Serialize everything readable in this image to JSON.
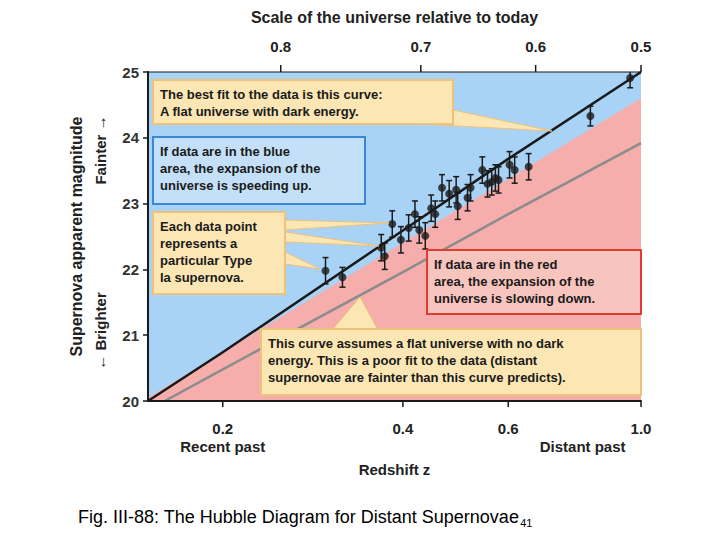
{
  "chart_data": {
    "type": "scatter",
    "title": "Scale of the universe relative to today",
    "xlabel": "Redshift z",
    "ylabel": "Supernova apparent magnitude",
    "ylabel_direction": {
      "up": "Fainter →",
      "down": "← Brighter"
    },
    "x_range_notes": {
      "low": "Recent past",
      "high": "Distant past"
    },
    "log": "x",
    "grid": false,
    "xlim": [
      0.15,
      1.0
    ],
    "xticks": [
      0.2,
      0.4,
      0.6,
      {
        "value": 1.0,
        "label": "1.0"
      }
    ],
    "ylim": [
      20,
      25
    ],
    "yticks": [
      20,
      21,
      22,
      23,
      24,
      25
    ],
    "x2lim": [
      0.87,
      0.5
    ],
    "x2ticks": [
      0.8,
      0.7,
      0.6,
      0.5
    ],
    "series": [
      {
        "type": "area",
        "color": "#a9d3f6",
        "x": [
          0.15,
          1.0
        ],
        "values": [
          25,
          25
        ]
      },
      {
        "type": "area",
        "color": "#f5aeab",
        "x": [
          0.15,
          1.0
        ],
        "values": [
          20.05,
          24.6
        ]
      },
      {
        "type": "line",
        "color": "#8c8c8c",
        "x": [
          0.16,
          0.2,
          0.4,
          0.6,
          1.0
        ],
        "values": [
          20.0,
          20.48,
          21.96,
          22.84,
          23.92
        ]
      },
      {
        "type": "line",
        "color": "#1a1a1a",
        "x": [
          0.15,
          0.2,
          0.4,
          0.6,
          1.0
        ],
        "values": [
          20.0,
          20.74,
          22.59,
          23.68,
          25.0
        ]
      },
      {
        "type": "scatter",
        "color": "#1a1a1a",
        "marker": "circle",
        "x": [
          0.297,
          0.317,
          0.368,
          0.373,
          0.384,
          0.397,
          0.409,
          0.419,
          0.426,
          0.436,
          0.446,
          0.453,
          0.465,
          0.478,
          0.491,
          0.494,
          0.513,
          0.519,
          0.543,
          0.554,
          0.563,
          0.571,
          0.578,
          0.603,
          0.615,
          0.649,
          0.823,
          0.959
        ],
        "values": [
          21.98,
          21.88,
          22.33,
          22.2,
          22.69,
          22.45,
          22.63,
          22.84,
          22.6,
          22.51,
          22.93,
          22.84,
          23.24,
          23.15,
          23.21,
          22.96,
          23.09,
          23.24,
          23.51,
          23.3,
          23.33,
          23.39,
          23.36,
          23.59,
          23.51,
          23.56,
          24.33,
          24.91
        ],
        "errors": [
          0.2,
          0.15,
          0.2,
          0.2,
          0.2,
          0.2,
          0.2,
          0.2,
          0.2,
          0.2,
          0.2,
          0.2,
          0.2,
          0.2,
          0.2,
          0.2,
          0.2,
          0.2,
          0.2,
          0.2,
          0.2,
          0.2,
          0.2,
          0.2,
          0.2,
          0.2,
          0.15,
          0.15
        ]
      }
    ],
    "annotations": [
      {
        "text": "The best fit to the data is this curve:\nA flat universe with dark energy."
      },
      {
        "text": "If data are in the blue\narea, the expansion of the\nuniverse is speeding up."
      },
      {
        "text": "Each data point\nrepresents a\nparticular Type\nIa supernova."
      },
      {
        "text": "If data are in the red\narea, the expansion of the\nuniverse is slowing down."
      },
      {
        "text": "This curve assumes a flat universe with no dark\nenergy. This is a poor fit to the data (distant\nsupernovae are fainter than this curve predicts)."
      }
    ]
  },
  "caption": "Fig. III-88: The Hubble Diagram for Distant Supernovae",
  "caption_ref": "41"
}
